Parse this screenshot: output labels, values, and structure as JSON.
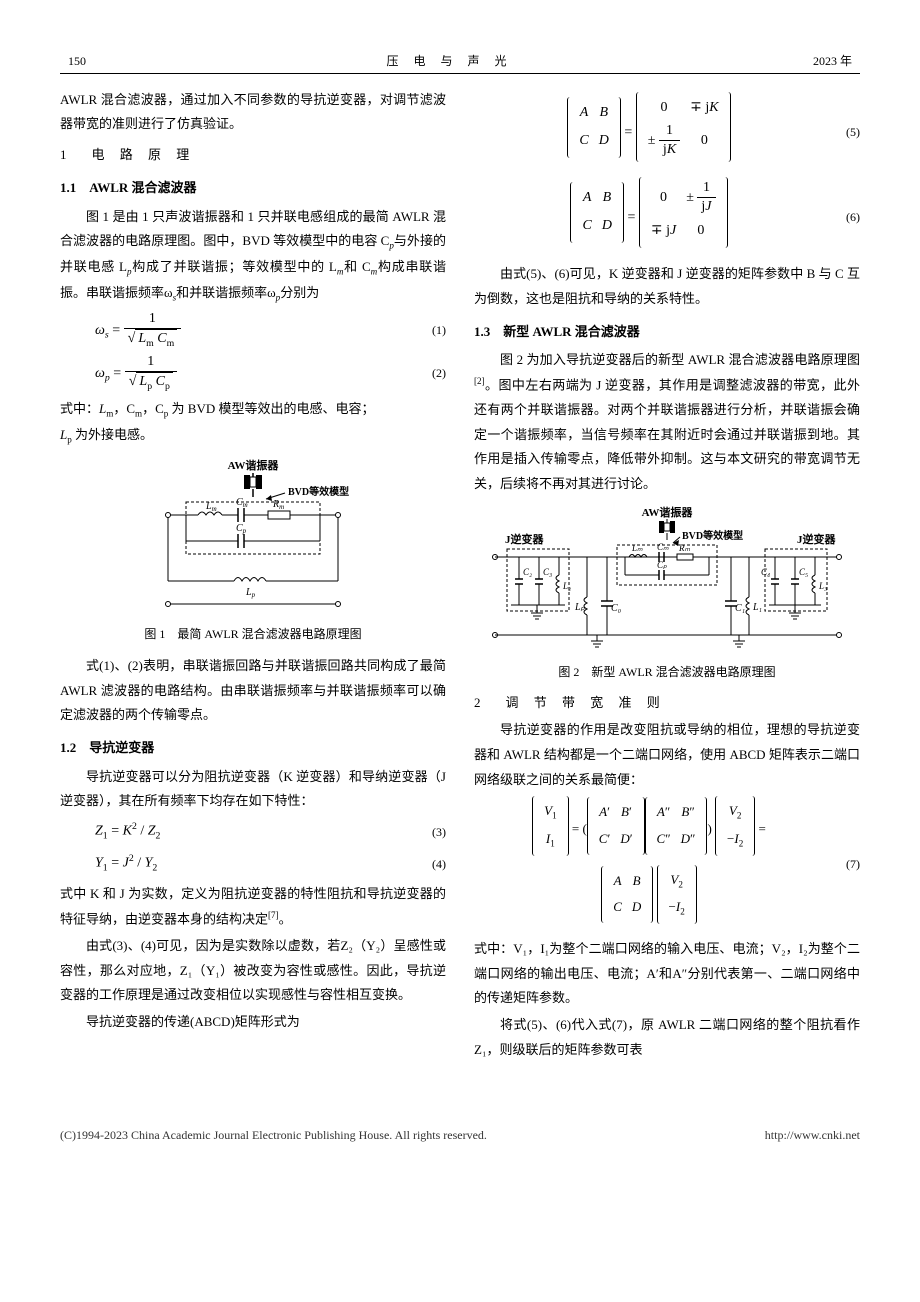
{
  "page": {
    "number": "150",
    "journal": "压 电 与 声 光",
    "year": "2023 年"
  },
  "left": {
    "para1": "AWLR 混合滤波器，通过加入不同参数的导抗逆变器，对调节滤波器带宽的准则进行了仿真验证。",
    "sec1_num": "1",
    "sec1_title": "电 路 原 理",
    "sub11": "1.1　AWLR 混合滤波器",
    "para11a": "图 1 是由 1 只声波谐振器和 1 只并联电感组成的最简 AWLR 混合滤波器的电路原理图。图中，BVD 等效模型中的电容 C",
    "para11a_sub1": "p",
    "para11a_2": "与外接的并联电感 L",
    "para11a_sub2": "p",
    "para11a_3": "构成了并联谐振；等效模型中的 L",
    "para11a_sub3": "m",
    "para11a_4": "和 C",
    "para11a_sub4": "m",
    "para11a_5": "构成串联谐振。串联谐振频率ω",
    "para11a_sub5": "s",
    "para11a_6": "和并联谐振频率ω",
    "para11a_sub6": "p",
    "para11a_7": "分别为",
    "eq1_lhs": "ω",
    "eq1_lhs_sub": "s",
    "eq1_den1": "L",
    "eq1_den1_sub": "m",
    "eq1_den2": "C",
    "eq1_den2_sub": "m",
    "eq1_label": "(1)",
    "eq2_lhs": "ω",
    "eq2_lhs_sub": "p",
    "eq2_den1": "L",
    "eq2_den1_sub": "p",
    "eq2_den2": "C",
    "eq2_den2_sub": "p",
    "eq2_label": "(2)",
    "para11b_1": "式中：",
    "para11b_2": "L",
    "para11b_2s": "m",
    "para11b_3": "，C",
    "para11b_3s": "m",
    "para11b_4": "，C",
    "para11b_4s": "p",
    "para11b_5": " 为 BVD 模型等效出的电感、电容；",
    "para11b_6": "L",
    "para11b_6s": "p",
    "para11b_7": " 为外接电感。",
    "fig1": {
      "aw_label": "AW谐振器",
      "bvd_label": "BVD等效模型",
      "Lm": "L",
      "Lm_s": "m",
      "Cm": "C",
      "Cm_s": "m",
      "Rm": "R",
      "Rm_s": "m",
      "Cp": "C",
      "Cp_s": "p",
      "Lp": "L",
      "Lp_s": "p",
      "caption": "图 1　最简 AWLR 混合滤波器电路原理图"
    },
    "para11c": "式(1)、(2)表明，串联谐振回路与并联谐振回路共同构成了最简 AWLR 滤波器的电路结构。由串联谐振频率与并联谐振频率可以确定滤波器的两个传输零点。",
    "sub12": "1.2　导抗逆变器",
    "para12a": "导抗逆变器可以分为阻抗逆变器（K 逆变器）和导纳逆变器（J 逆变器），其在所有频率下均存在如下特性：",
    "eq3": "Z₁ = K² / Z₂",
    "eq3_label": "(3)",
    "eq4": "Y₁ = J² / Y₂",
    "eq4_label": "(4)",
    "para12b": "式中 K 和 J 为实数，定义为阻抗逆变器的特性阻抗和导抗逆变器的特征导纳，由逆变器本身的结构决定",
    "para12b_ref": "[7]",
    "para12b_end": "。",
    "para12c": "由式(3)、(4)可见，因为是实数除以虚数，若Z₂（Y₂）呈感性或容性，那么对应地，Z₁（Y₁）被改变为容性或感性。因此，导抗逆变器的工作原理是通过改变相位以实现感性与容性相互变换。",
    "para12d": "导抗逆变器的传递(ABCD)矩阵形式为"
  },
  "right": {
    "eq5_label": "(5)",
    "eq6_label": "(6)",
    "para_r1": "由式(5)、(6)可见，K 逆变器和 J 逆变器的矩阵参数中 B 与 C 互为倒数，这也是阻抗和导纳的关系特性。",
    "sub13": "1.3　新型 AWLR 混合滤波器",
    "para13a": "图 2 为加入导抗逆变器后的新型 AWLR 混合滤波器电路原理图",
    "para13a_ref": "[2]",
    "para13a_2": "。图中左右两端为 J 逆变器，其作用是调整滤波器的带宽，此外还有两个并联谐振器。对两个并联谐振器进行分析，并联谐振会确定一个谐振频率，当信号频率在其附近时会通过并联谐振到地。其作用是插入传输零点，降低带外抑制。这与本文研究的带宽调节无关，后续将不再对其进行讨论。",
    "fig2": {
      "aw_label": "AW谐振器",
      "bvd_label": "BVD等效模型",
      "j_left": "J逆变器",
      "j_right": "J逆变器",
      "caption": "图 2　新型 AWLR 混合滤波器电路原理图"
    },
    "sec2_num": "2",
    "sec2_title": "调 节 带 宽 准 则",
    "para2a": "导抗逆变器的作用是改变阻抗或导纳的相位，理想的导抗逆变器和 AWLR 结构都是一个二端口网络，使用 ABCD 矩阵表示二端口网络级联之间的关系最简便：",
    "eq7_label": "(7)",
    "para2b_1": "式中：",
    "para2b_2": "V₁，I₁为整个二端口网络的输入电压、电流；V₂，I₂为整个二端口网络的输出电压、电流；A′和A″分别代表第一、二端口网络中的传递矩阵参数。",
    "para2c": "将式(5)、(6)代入式(7)，原 AWLR 二端口网络的整个阻抗看作Z₁，则级联后的矩阵参数可表"
  },
  "footer": {
    "copyright": "(C)1994-2023 China Academic Journal Electronic Publishing House. All rights reserved.",
    "url": "http://www.cnki.net"
  }
}
